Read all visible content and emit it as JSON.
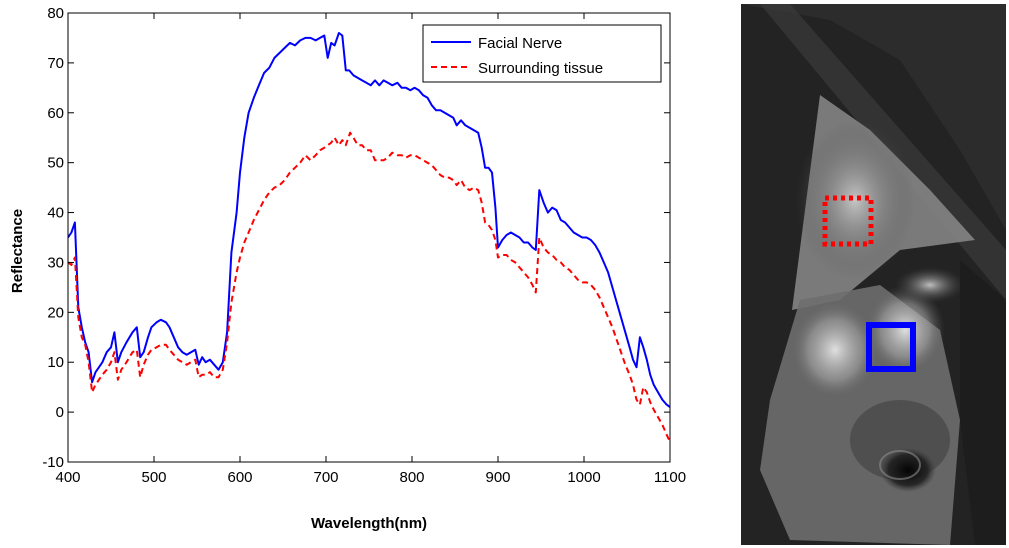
{
  "chart_data": {
    "type": "line",
    "title": "",
    "xlabel": "Wavelength(nm)",
    "ylabel": "Reflectance",
    "xlim": [
      400,
      1100
    ],
    "ylim": [
      -10,
      80
    ],
    "xticks": [
      400,
      500,
      600,
      700,
      800,
      900,
      1000,
      1100
    ],
    "yticks": [
      -10,
      0,
      10,
      20,
      30,
      40,
      50,
      60,
      70,
      80
    ],
    "xtick_labels": [
      "400",
      "500",
      "600",
      "700",
      "800",
      "900",
      "1000",
      "1100"
    ],
    "ytick_labels": [
      "-10",
      "0",
      "10",
      "20",
      "30",
      "40",
      "50",
      "60",
      "70",
      "80"
    ],
    "grid": false,
    "legend_position": "top-right",
    "series": [
      {
        "name": "Facial Nerve",
        "color": "#0000ff",
        "dash": "solid",
        "points": [
          [
            400,
            35
          ],
          [
            404,
            36
          ],
          [
            408,
            38
          ],
          [
            412,
            21
          ],
          [
            416,
            17
          ],
          [
            420,
            14
          ],
          [
            424,
            12
          ],
          [
            428,
            6
          ],
          [
            432,
            8
          ],
          [
            436,
            9
          ],
          [
            440,
            10
          ],
          [
            445,
            12
          ],
          [
            450,
            13
          ],
          [
            454,
            16
          ],
          [
            458,
            10
          ],
          [
            462,
            12
          ],
          [
            468,
            14
          ],
          [
            475,
            16
          ],
          [
            480,
            17
          ],
          [
            484,
            11
          ],
          [
            488,
            12
          ],
          [
            493,
            15
          ],
          [
            497,
            17
          ],
          [
            503,
            18
          ],
          [
            508,
            18.5
          ],
          [
            514,
            18
          ],
          [
            518,
            17
          ],
          [
            523,
            15
          ],
          [
            528,
            13
          ],
          [
            533,
            12
          ],
          [
            538,
            11.5
          ],
          [
            543,
            12
          ],
          [
            548,
            12.5
          ],
          [
            552,
            9.5
          ],
          [
            556,
            11
          ],
          [
            560,
            10
          ],
          [
            565,
            10.5
          ],
          [
            570,
            9.5
          ],
          [
            575,
            8.5
          ],
          [
            580,
            10
          ],
          [
            585,
            16
          ],
          [
            590,
            32
          ],
          [
            596,
            40
          ],
          [
            600,
            48
          ],
          [
            605,
            55
          ],
          [
            610,
            60
          ],
          [
            616,
            63
          ],
          [
            622,
            65.5
          ],
          [
            628,
            68
          ],
          [
            634,
            69
          ],
          [
            640,
            71
          ],
          [
            646,
            72
          ],
          [
            652,
            73
          ],
          [
            658,
            74
          ],
          [
            664,
            73.5
          ],
          [
            670,
            74.5
          ],
          [
            676,
            75
          ],
          [
            682,
            75
          ],
          [
            688,
            74.5
          ],
          [
            693,
            75
          ],
          [
            698,
            75.5
          ],
          [
            702,
            71
          ],
          [
            706,
            74
          ],
          [
            710,
            73.5
          ],
          [
            715,
            76
          ],
          [
            719,
            75.5
          ],
          [
            723,
            68.5
          ],
          [
            727,
            68.5
          ],
          [
            732,
            67.5
          ],
          [
            737,
            67
          ],
          [
            742,
            66.5
          ],
          [
            747,
            66
          ],
          [
            752,
            65.5
          ],
          [
            757,
            66.5
          ],
          [
            762,
            65.5
          ],
          [
            767,
            66.5
          ],
          [
            772,
            66
          ],
          [
            777,
            65.5
          ],
          [
            783,
            66
          ],
          [
            788,
            65
          ],
          [
            793,
            65
          ],
          [
            798,
            64.5
          ],
          [
            803,
            65
          ],
          [
            808,
            64.5
          ],
          [
            813,
            63.5
          ],
          [
            818,
            63
          ],
          [
            823,
            61.5
          ],
          [
            828,
            60.5
          ],
          [
            833,
            60.5
          ],
          [
            838,
            60
          ],
          [
            843,
            59.5
          ],
          [
            848,
            59
          ],
          [
            852,
            57.5
          ],
          [
            857,
            58.5
          ],
          [
            862,
            57.5
          ],
          [
            867,
            57
          ],
          [
            872,
            56.5
          ],
          [
            877,
            56
          ],
          [
            881,
            53
          ],
          [
            885,
            49
          ],
          [
            889,
            49
          ],
          [
            893,
            48
          ],
          [
            897,
            41
          ],
          [
            900,
            33
          ],
          [
            905,
            34.5
          ],
          [
            910,
            35.5
          ],
          [
            915,
            36
          ],
          [
            920,
            35.5
          ],
          [
            925,
            35
          ],
          [
            930,
            34
          ],
          [
            935,
            34
          ],
          [
            940,
            33
          ],
          [
            944,
            32.5
          ],
          [
            948,
            44.5
          ],
          [
            953,
            42
          ],
          [
            958,
            40
          ],
          [
            963,
            41
          ],
          [
            968,
            40.5
          ],
          [
            973,
            38.5
          ],
          [
            978,
            38
          ],
          [
            983,
            37
          ],
          [
            988,
            36
          ],
          [
            993,
            35.5
          ],
          [
            998,
            35
          ],
          [
            1003,
            35
          ],
          [
            1008,
            34.5
          ],
          [
            1013,
            33.5
          ],
          [
            1018,
            32
          ],
          [
            1023,
            30
          ],
          [
            1028,
            28
          ],
          [
            1033,
            25
          ],
          [
            1038,
            22
          ],
          [
            1043,
            19
          ],
          [
            1048,
            16
          ],
          [
            1053,
            13
          ],
          [
            1057,
            10.5
          ],
          [
            1061,
            9
          ],
          [
            1065,
            15
          ],
          [
            1069,
            13
          ],
          [
            1073,
            10.5
          ],
          [
            1077,
            7.5
          ],
          [
            1081,
            5.5
          ],
          [
            1086,
            4
          ],
          [
            1091,
            2.5
          ],
          [
            1096,
            1.5
          ],
          [
            1100,
            1
          ]
        ]
      },
      {
        "name": "Surrounding tissue",
        "color": "#ff0000",
        "dash": "dashed",
        "points": [
          [
            400,
            30
          ],
          [
            404,
            29.5
          ],
          [
            408,
            31
          ],
          [
            412,
            19
          ],
          [
            416,
            15
          ],
          [
            420,
            13.5
          ],
          [
            424,
            10
          ],
          [
            428,
            4
          ],
          [
            432,
            5.5
          ],
          [
            436,
            6.5
          ],
          [
            440,
            7.5
          ],
          [
            445,
            8.5
          ],
          [
            450,
            10
          ],
          [
            454,
            12
          ],
          [
            458,
            6.5
          ],
          [
            462,
            8.5
          ],
          [
            468,
            10
          ],
          [
            475,
            12
          ],
          [
            480,
            12.5
          ],
          [
            484,
            7
          ],
          [
            488,
            9.5
          ],
          [
            493,
            11.5
          ],
          [
            497,
            12.5
          ],
          [
            503,
            13
          ],
          [
            508,
            13.5
          ],
          [
            514,
            13.5
          ],
          [
            518,
            12.5
          ],
          [
            523,
            11.5
          ],
          [
            528,
            10.5
          ],
          [
            533,
            10
          ],
          [
            538,
            9.5
          ],
          [
            543,
            10
          ],
          [
            548,
            10.5
          ],
          [
            552,
            7
          ],
          [
            556,
            7.5
          ],
          [
            560,
            7.5
          ],
          [
            565,
            8
          ],
          [
            570,
            7
          ],
          [
            575,
            7
          ],
          [
            580,
            8.5
          ],
          [
            585,
            14
          ],
          [
            590,
            22
          ],
          [
            596,
            28
          ],
          [
            600,
            31
          ],
          [
            605,
            34
          ],
          [
            610,
            36
          ],
          [
            616,
            38.5
          ],
          [
            622,
            40.5
          ],
          [
            628,
            42.5
          ],
          [
            634,
            44
          ],
          [
            640,
            45
          ],
          [
            646,
            45.5
          ],
          [
            652,
            46.5
          ],
          [
            658,
            48
          ],
          [
            664,
            49
          ],
          [
            670,
            50
          ],
          [
            676,
            51.5
          ],
          [
            682,
            50.5
          ],
          [
            688,
            51.5
          ],
          [
            693,
            52.5
          ],
          [
            698,
            53
          ],
          [
            702,
            53.5
          ],
          [
            706,
            54
          ],
          [
            710,
            55
          ],
          [
            715,
            53.5
          ],
          [
            719,
            54.5
          ],
          [
            723,
            53.5
          ],
          [
            728,
            56
          ],
          [
            732,
            55
          ],
          [
            737,
            53.5
          ],
          [
            742,
            53.5
          ],
          [
            747,
            52.5
          ],
          [
            752,
            52.5
          ],
          [
            757,
            50.5
          ],
          [
            762,
            50.5
          ],
          [
            767,
            50.5
          ],
          [
            772,
            51
          ],
          [
            777,
            52
          ],
          [
            783,
            51.5
          ],
          [
            788,
            51.5
          ],
          [
            793,
            51
          ],
          [
            798,
            51.5
          ],
          [
            803,
            51.5
          ],
          [
            808,
            51
          ],
          [
            813,
            50.5
          ],
          [
            818,
            50
          ],
          [
            823,
            49.5
          ],
          [
            828,
            48.5
          ],
          [
            833,
            47.5
          ],
          [
            838,
            47
          ],
          [
            843,
            47
          ],
          [
            848,
            46.5
          ],
          [
            852,
            45.5
          ],
          [
            857,
            46.5
          ],
          [
            862,
            45
          ],
          [
            867,
            44.5
          ],
          [
            872,
            45
          ],
          [
            877,
            44.5
          ],
          [
            881,
            42
          ],
          [
            885,
            38
          ],
          [
            889,
            37.5
          ],
          [
            893,
            36.5
          ],
          [
            897,
            34.5
          ],
          [
            900,
            31
          ],
          [
            905,
            31.5
          ],
          [
            910,
            31.5
          ],
          [
            915,
            30.5
          ],
          [
            920,
            30
          ],
          [
            925,
            29
          ],
          [
            930,
            28
          ],
          [
            935,
            27
          ],
          [
            940,
            25.5
          ],
          [
            944,
            24
          ],
          [
            948,
            35
          ],
          [
            953,
            33
          ],
          [
            958,
            32
          ],
          [
            963,
            31.5
          ],
          [
            968,
            30.5
          ],
          [
            973,
            30
          ],
          [
            978,
            29
          ],
          [
            983,
            28.5
          ],
          [
            988,
            27.5
          ],
          [
            993,
            26.5
          ],
          [
            998,
            26
          ],
          [
            1003,
            26
          ],
          [
            1008,
            25.5
          ],
          [
            1013,
            24.5
          ],
          [
            1018,
            23
          ],
          [
            1023,
            21
          ],
          [
            1028,
            19
          ],
          [
            1033,
            17
          ],
          [
            1038,
            14.5
          ],
          [
            1043,
            12
          ],
          [
            1048,
            9.5
          ],
          [
            1053,
            7.5
          ],
          [
            1057,
            5.5
          ],
          [
            1061,
            2.5
          ],
          [
            1065,
            1.5
          ],
          [
            1069,
            5
          ],
          [
            1073,
            4
          ],
          [
            1077,
            2
          ],
          [
            1081,
            0.5
          ],
          [
            1086,
            -1
          ],
          [
            1091,
            -2.5
          ],
          [
            1096,
            -4.5
          ],
          [
            1100,
            -6
          ]
        ]
      }
    ]
  },
  "image_panel": {
    "markers": [
      {
        "name": "surrounding-tissue-roi",
        "color": "#ff0000",
        "style": "dotted"
      },
      {
        "name": "facial-nerve-roi",
        "color": "#0000ff",
        "style": "solid"
      }
    ]
  }
}
